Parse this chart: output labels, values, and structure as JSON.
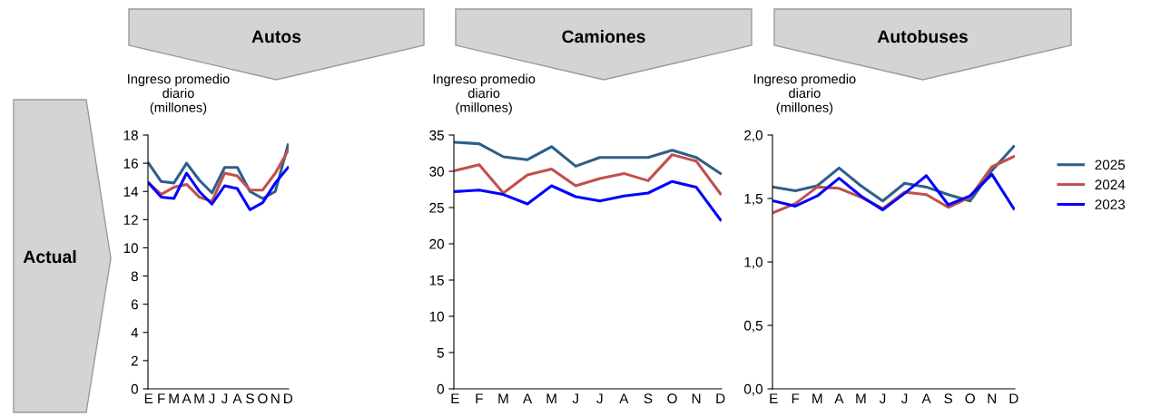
{
  "chart_data": [
    {
      "type": "line",
      "title": "Autos",
      "ylabel": "Ingreso promedio\ndiario\n(millones)",
      "annotations": [
        "Actual"
      ],
      "categories": [
        "E",
        "F",
        "M",
        "A",
        "M",
        "J",
        "J",
        "A",
        "S",
        "O",
        "N",
        "D"
      ],
      "ylim": [
        0,
        18
      ],
      "yticks": [
        0,
        2,
        4,
        6,
        8,
        10,
        12,
        14,
        16,
        18
      ],
      "grid": false,
      "legend": false,
      "marker": "none",
      "line_style": "solid",
      "series": [
        {
          "color": "#2e5f8a",
          "values": [
            16,
            14.7,
            14.6,
            16,
            14.8,
            13.9,
            15.7,
            15.7,
            14.0,
            13.5,
            14.0,
            17.3
          ]
        },
        {
          "color": "#c0504d",
          "values": [
            14.6,
            13.8,
            14.3,
            14.5,
            13.6,
            13.3,
            15.3,
            15.1,
            14.1,
            14.1,
            15.3,
            16.9
          ]
        },
        {
          "color": "#0000ff",
          "values": [
            14.6,
            13.6,
            13.5,
            15.3,
            14.0,
            13.1,
            14.4,
            14.2,
            12.7,
            13.2,
            14.6,
            15.7
          ]
        }
      ]
    },
    {
      "type": "line",
      "title": "Camiones",
      "ylabel": "Ingreso promedio\ndiario\n(millones)",
      "categories": [
        "E",
        "F",
        "M",
        "A",
        "M",
        "J",
        "J",
        "A",
        "S",
        "O",
        "N",
        "D"
      ],
      "ylim": [
        0,
        35
      ],
      "yticks": [
        0,
        5,
        10,
        15,
        20,
        25,
        30,
        35
      ],
      "grid": false,
      "legend": false,
      "marker": "none",
      "line_style": "solid",
      "series": [
        {
          "color": "#2e5f8a",
          "values": [
            34,
            33.8,
            32,
            31.6,
            33.4,
            30.7,
            31.9,
            31.9,
            31.9,
            32.9,
            31.9,
            29.7
          ]
        },
        {
          "color": "#c0504d",
          "values": [
            30.1,
            30.9,
            27,
            29.5,
            30.3,
            28,
            29,
            29.7,
            28.7,
            32.3,
            31.4,
            26.9
          ]
        },
        {
          "color": "#0000ff",
          "values": [
            27.2,
            27.4,
            26.8,
            25.5,
            28,
            26.5,
            25.9,
            26.6,
            27,
            28.6,
            27.8,
            23.3
          ]
        }
      ]
    },
    {
      "type": "line",
      "title": "Autobuses",
      "ylabel": "Ingreso promedio\ndiario\n(millones)",
      "categories": [
        "E",
        "F",
        "M",
        "A",
        "M",
        "J",
        "J",
        "A",
        "S",
        "O",
        "N",
        "D"
      ],
      "ylim": [
        0,
        2
      ],
      "yticks": [
        {
          "value": 0,
          "label": "0,0"
        },
        {
          "value": 0.5,
          "label": "0,5"
        },
        {
          "value": 1,
          "label": "1,0"
        },
        {
          "value": 1.5,
          "label": "1,5"
        },
        {
          "value": 2,
          "label": "2,0"
        }
      ],
      "grid": false,
      "legend": "right",
      "marker": "none",
      "line_style": "solid",
      "series": [
        {
          "name": "2025",
          "color": "#2e5f8a",
          "values": [
            1.59,
            1.56,
            1.6,
            1.74,
            1.6,
            1.48,
            1.62,
            1.59,
            1.53,
            1.48,
            1.72,
            1.91
          ]
        },
        {
          "name": "2024",
          "color": "#c0504d",
          "values": [
            1.39,
            1.46,
            1.59,
            1.58,
            1.51,
            1.42,
            1.55,
            1.53,
            1.43,
            1.51,
            1.75,
            1.83
          ]
        },
        {
          "name": "2023",
          "color": "#0000ff",
          "values": [
            1.48,
            1.44,
            1.52,
            1.66,
            1.52,
            1.41,
            1.54,
            1.68,
            1.45,
            1.52,
            1.69,
            1.42
          ]
        }
      ]
    }
  ]
}
